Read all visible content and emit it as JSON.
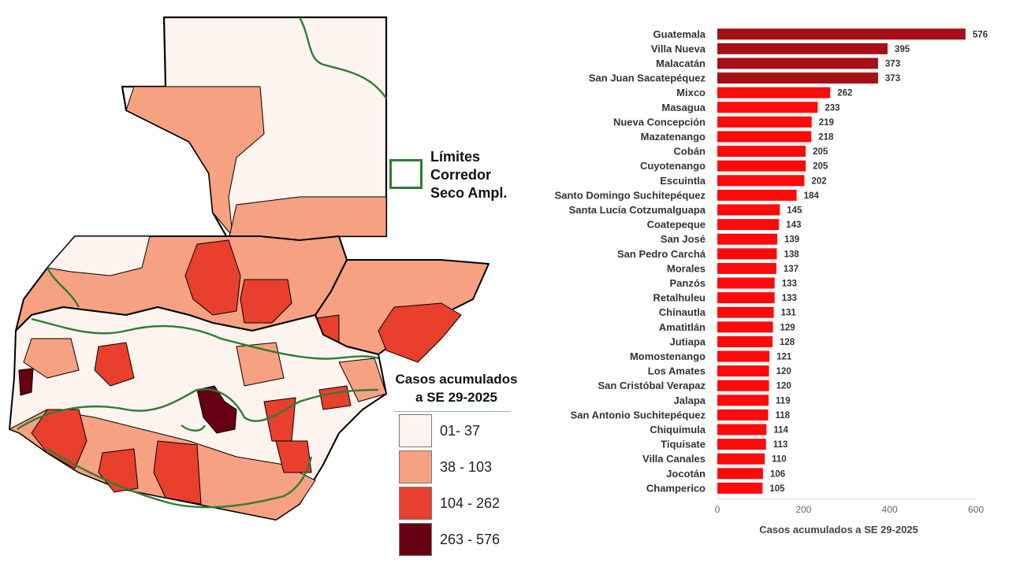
{
  "map": {
    "corridor_legend": {
      "text": "Límites\nCorredor\nSeco Ampl.",
      "color": "#2e7d32"
    },
    "scale_legend": {
      "title": "Casos acumulados\n a SE 29-2025",
      "items": [
        {
          "label": "01- 37",
          "color": "#fdf3ef"
        },
        {
          "label": "38 - 103",
          "color": "#f6a181"
        },
        {
          "label": "104 - 262",
          "color": "#e8402d"
        },
        {
          "label": "263 - 576",
          "color": "#660010"
        }
      ]
    }
  },
  "chart_data": {
    "type": "bar",
    "orientation": "horizontal",
    "categories": [
      "Guatemala",
      "Villa Nueva",
      "Malacatán",
      "San Juan Sacatepéquez",
      "Mixco",
      "Masagua",
      "Nueva Concepción",
      "Mazatenango",
      "Cobán",
      "Cuyotenango",
      "Escuintla",
      "Santo Domingo Suchitepéquez",
      "Santa Lucía Cotzumalguapa",
      "Coatepeque",
      "San José",
      "San Pedro Carchá",
      "Morales",
      "Panzós",
      "Retalhuleu",
      "Chinautla",
      "Amatitlán",
      "Jutiapa",
      "Momostenango",
      "Los Amates",
      "San Cristóbal Verapaz",
      "Jalapa",
      "San Antonio Suchitepéquez",
      "Chiquimula",
      "Tiquisate",
      "Villa Canales",
      "Jocotán",
      "Champerico"
    ],
    "values": [
      576,
      395,
      373,
      373,
      262,
      233,
      219,
      218,
      205,
      205,
      202,
      184,
      145,
      143,
      139,
      138,
      137,
      133,
      133,
      131,
      129,
      128,
      121,
      120,
      120,
      119,
      118,
      114,
      113,
      110,
      106,
      105
    ],
    "xlabel": "Casos acumulados a SE 29-2025",
    "xlim": [
      0,
      600
    ],
    "xticks": [
      0,
      200,
      400,
      600
    ],
    "bar_colors": {
      "high": "#a50f15",
      "normal": "#fe0a0a"
    },
    "high_threshold": 263,
    "grid": false
  }
}
